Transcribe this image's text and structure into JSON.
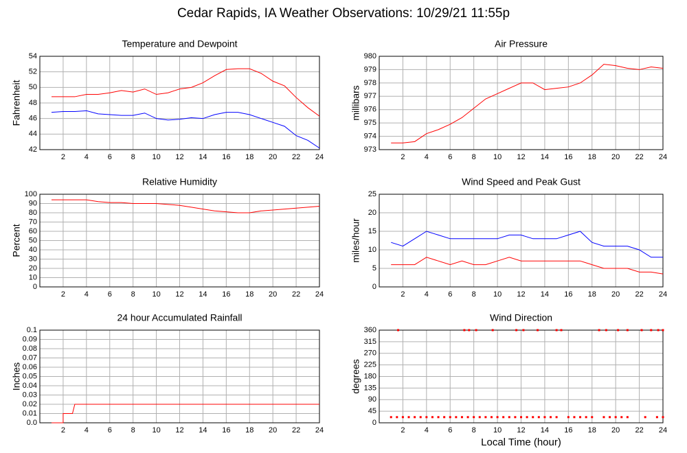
{
  "title": "Cedar Rapids, IA Weather Observations: 10/29/21 11:55p",
  "chart_data": [
    {
      "type": "line",
      "title": "Temperature and Dewpoint",
      "ylabel": "Fahrenheit",
      "x": [
        1,
        2,
        3,
        4,
        5,
        6,
        7,
        8,
        9,
        10,
        11,
        12,
        13,
        14,
        15,
        16,
        17,
        18,
        19,
        20,
        21,
        22,
        23,
        24
      ],
      "series": [
        {
          "name": "Temperature",
          "color": "#ff0000",
          "values": [
            48.8,
            48.8,
            48.8,
            49.1,
            49.1,
            49.3,
            49.6,
            49.4,
            49.8,
            49.1,
            49.3,
            49.8,
            50.0,
            50.6,
            51.5,
            52.3,
            52.4,
            52.4,
            51.8,
            50.8,
            50.2,
            48.7,
            47.4,
            46.3
          ]
        },
        {
          "name": "Dewpoint",
          "color": "#0000ff",
          "values": [
            46.8,
            46.9,
            46.9,
            47.0,
            46.6,
            46.5,
            46.4,
            46.4,
            46.7,
            46.0,
            45.8,
            45.9,
            46.1,
            46.0,
            46.5,
            46.8,
            46.8,
            46.5,
            46.0,
            45.5,
            45.0,
            43.8,
            43.2,
            42.2
          ]
        }
      ],
      "xlim": [
        0,
        24
      ],
      "xticks": [
        2,
        4,
        6,
        8,
        10,
        12,
        14,
        16,
        18,
        20,
        22,
        24
      ],
      "ylim": [
        42,
        54
      ],
      "yticks": [
        42,
        44,
        46,
        48,
        50,
        52,
        54
      ],
      "grid": true
    },
    {
      "type": "line",
      "title": "Air Pressure",
      "ylabel": "millibars",
      "x": [
        1,
        2,
        3,
        4,
        5,
        6,
        7,
        8,
        9,
        10,
        11,
        12,
        13,
        14,
        15,
        16,
        17,
        18,
        19,
        20,
        21,
        22,
        23,
        24
      ],
      "series": [
        {
          "name": "Pressure",
          "color": "#ff0000",
          "values": [
            973.5,
            973.5,
            973.6,
            974.2,
            974.5,
            974.9,
            975.4,
            976.1,
            976.8,
            977.2,
            977.6,
            978.0,
            978.0,
            977.5,
            977.6,
            977.7,
            978.0,
            978.6,
            979.4,
            979.3,
            979.1,
            979.0,
            979.2,
            979.1
          ]
        }
      ],
      "xlim": [
        0,
        24
      ],
      "xticks": [
        2,
        4,
        6,
        8,
        10,
        12,
        14,
        16,
        18,
        20,
        22,
        24
      ],
      "ylim": [
        973,
        980
      ],
      "yticks": [
        973,
        974,
        975,
        976,
        977,
        978,
        979,
        980
      ],
      "grid": true
    },
    {
      "type": "line",
      "title": "Relative Humidity",
      "ylabel": "Percent",
      "x": [
        1,
        2,
        3,
        4,
        5,
        6,
        7,
        8,
        9,
        10,
        11,
        12,
        13,
        14,
        15,
        16,
        17,
        18,
        19,
        20,
        21,
        22,
        23,
        24
      ],
      "series": [
        {
          "name": "Humidity",
          "color": "#ff0000",
          "values": [
            94,
            94,
            94,
            94,
            92,
            91,
            91,
            90,
            90,
            90,
            89,
            88,
            86,
            84,
            82,
            81,
            80,
            80,
            82,
            83,
            84,
            85,
            86,
            87
          ]
        }
      ],
      "xlim": [
        0,
        24
      ],
      "xticks": [
        2,
        4,
        6,
        8,
        10,
        12,
        14,
        16,
        18,
        20,
        22,
        24
      ],
      "ylim": [
        0,
        100
      ],
      "yticks": [
        0,
        10,
        20,
        30,
        40,
        50,
        60,
        70,
        80,
        90,
        100
      ],
      "grid": true
    },
    {
      "type": "line",
      "title": "Wind Speed and Peak Gust",
      "ylabel": "miles/hour",
      "x": [
        1,
        2,
        3,
        4,
        5,
        6,
        7,
        8,
        9,
        10,
        11,
        12,
        13,
        14,
        15,
        16,
        17,
        18,
        19,
        20,
        21,
        22,
        23,
        24
      ],
      "series": [
        {
          "name": "Peak Gust",
          "color": "#0000ff",
          "values": [
            12,
            11,
            13,
            15,
            14,
            13,
            13,
            13,
            13,
            13,
            14,
            14,
            13,
            13,
            13,
            14,
            15,
            12,
            11,
            11,
            11,
            10,
            8,
            8
          ]
        },
        {
          "name": "Wind Speed",
          "color": "#ff0000",
          "values": [
            6,
            6,
            6,
            8,
            7,
            6,
            7,
            6,
            6,
            7,
            8,
            7,
            7,
            7,
            7,
            7,
            7,
            6,
            5,
            5,
            5,
            4,
            4,
            3.5
          ]
        }
      ],
      "xlim": [
        0,
        24
      ],
      "xticks": [
        2,
        4,
        6,
        8,
        10,
        12,
        14,
        16,
        18,
        20,
        22,
        24
      ],
      "ylim": [
        0,
        25
      ],
      "yticks": [
        0,
        5,
        10,
        15,
        20,
        25
      ],
      "grid": true
    },
    {
      "type": "line",
      "title": "24 hour Accumulated Rainfall",
      "ylabel": "Inches",
      "x": [
        1,
        2,
        2,
        2.8,
        3,
        24
      ],
      "series": [
        {
          "name": "Rainfall",
          "color": "#ff0000",
          "values": [
            0,
            0,
            0.01,
            0.01,
            0.02,
            0.02
          ]
        }
      ],
      "xlim": [
        0,
        24
      ],
      "xticks": [
        2,
        4,
        6,
        8,
        10,
        12,
        14,
        16,
        18,
        20,
        22,
        24
      ],
      "ylim": [
        0,
        0.1
      ],
      "yticks": [
        {
          "value": 0,
          "label": "0.0"
        },
        0.01,
        0.02,
        0.03,
        0.04,
        0.05,
        0.06,
        0.07,
        0.08,
        0.09,
        0.1
      ],
      "grid": true
    },
    {
      "type": "scatter",
      "title": "Wind Direction",
      "ylabel": "degrees",
      "xlabel": "Local Time (hour)",
      "x": [
        1,
        1.5,
        2,
        2.5,
        3,
        3.5,
        4,
        4.5,
        5,
        5.5,
        6,
        6.5,
        7,
        7.5,
        8,
        8.5,
        9,
        9.5,
        10,
        10.5,
        11,
        11.5,
        12,
        12.5,
        13,
        13.5,
        14,
        14.5,
        15,
        16,
        16.5,
        17,
        17.5,
        18,
        19,
        19.5,
        20,
        20.5,
        21,
        22.5,
        23.5,
        24,
        1.6,
        7.2,
        7.6,
        8.2,
        9.6,
        11.6,
        12.2,
        13.4,
        15.0,
        15.4,
        18.6,
        19.2,
        20.2,
        21.0,
        22.2,
        23.0,
        23.6,
        24.0
      ],
      "series": [
        {
          "name": "Direction",
          "color": "#ff0000",
          "values": [
            22,
            22,
            22,
            22,
            22,
            22,
            22,
            22,
            22,
            22,
            22,
            22,
            22,
            22,
            22,
            22,
            22,
            22,
            22,
            22,
            22,
            22,
            22,
            22,
            22,
            22,
            22,
            22,
            22,
            22,
            22,
            22,
            22,
            22,
            22,
            22,
            22,
            22,
            22,
            22,
            22,
            22,
            360,
            360,
            360,
            360,
            360,
            360,
            360,
            360,
            360,
            360,
            360,
            360,
            360,
            360,
            360,
            360,
            360,
            360
          ]
        }
      ],
      "xlim": [
        0,
        24
      ],
      "xticks": [
        2,
        4,
        6,
        8,
        10,
        12,
        14,
        16,
        18,
        20,
        22,
        24
      ],
      "ylim": [
        0,
        360
      ],
      "yticks": [
        0,
        45,
        90,
        135,
        180,
        225,
        270,
        315,
        360
      ],
      "grid": true
    }
  ]
}
